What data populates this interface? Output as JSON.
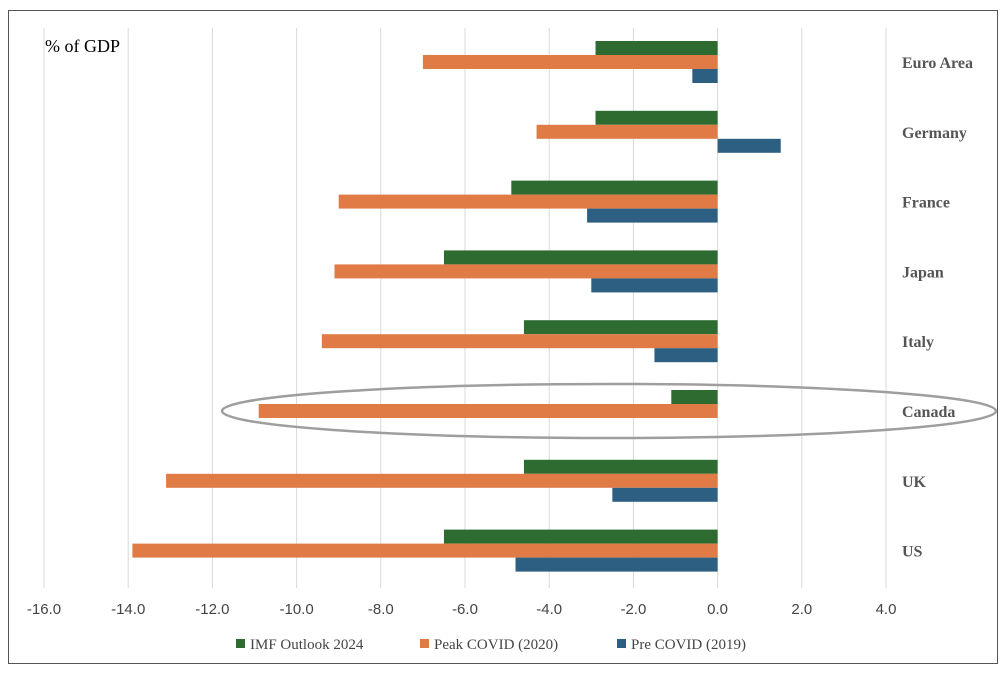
{
  "chart_data": {
    "type": "bar",
    "orientation": "horizontal",
    "unit_label": "% of GDP",
    "categories": [
      "Euro Area",
      "Germany",
      "France",
      "Japan",
      "Italy",
      "Canada",
      "UK",
      "US"
    ],
    "series": [
      {
        "name": "IMF Outlook 2024",
        "color": "#2e6b30",
        "values": [
          -2.9,
          -2.9,
          -4.9,
          -6.5,
          -4.6,
          -1.1,
          -4.6,
          -6.5
        ]
      },
      {
        "name": "Peak COVID (2020)",
        "color": "#e07b45",
        "values": [
          -7.0,
          -4.3,
          -9.0,
          -9.1,
          -9.4,
          -10.9,
          -13.1,
          -13.9
        ]
      },
      {
        "name": "Pre COVID (2019)",
        "color": "#2d5f82",
        "values": [
          -0.6,
          1.5,
          -3.1,
          -3.0,
          -1.5,
          0.0,
          -2.5,
          -4.8
        ]
      }
    ],
    "xlim": [
      -16,
      4
    ],
    "x_ticks": [
      "-16.0",
      "-14.0",
      "-12.0",
      "-10.0",
      "-8.0",
      "-6.0",
      "-4.0",
      "-2.0",
      "0.0",
      "2.0",
      "4.0"
    ],
    "grid": "vertical",
    "legend": "bottom",
    "highlight": {
      "category": "Canada",
      "shape": "ellipse",
      "color": "#9e9e9e"
    }
  }
}
